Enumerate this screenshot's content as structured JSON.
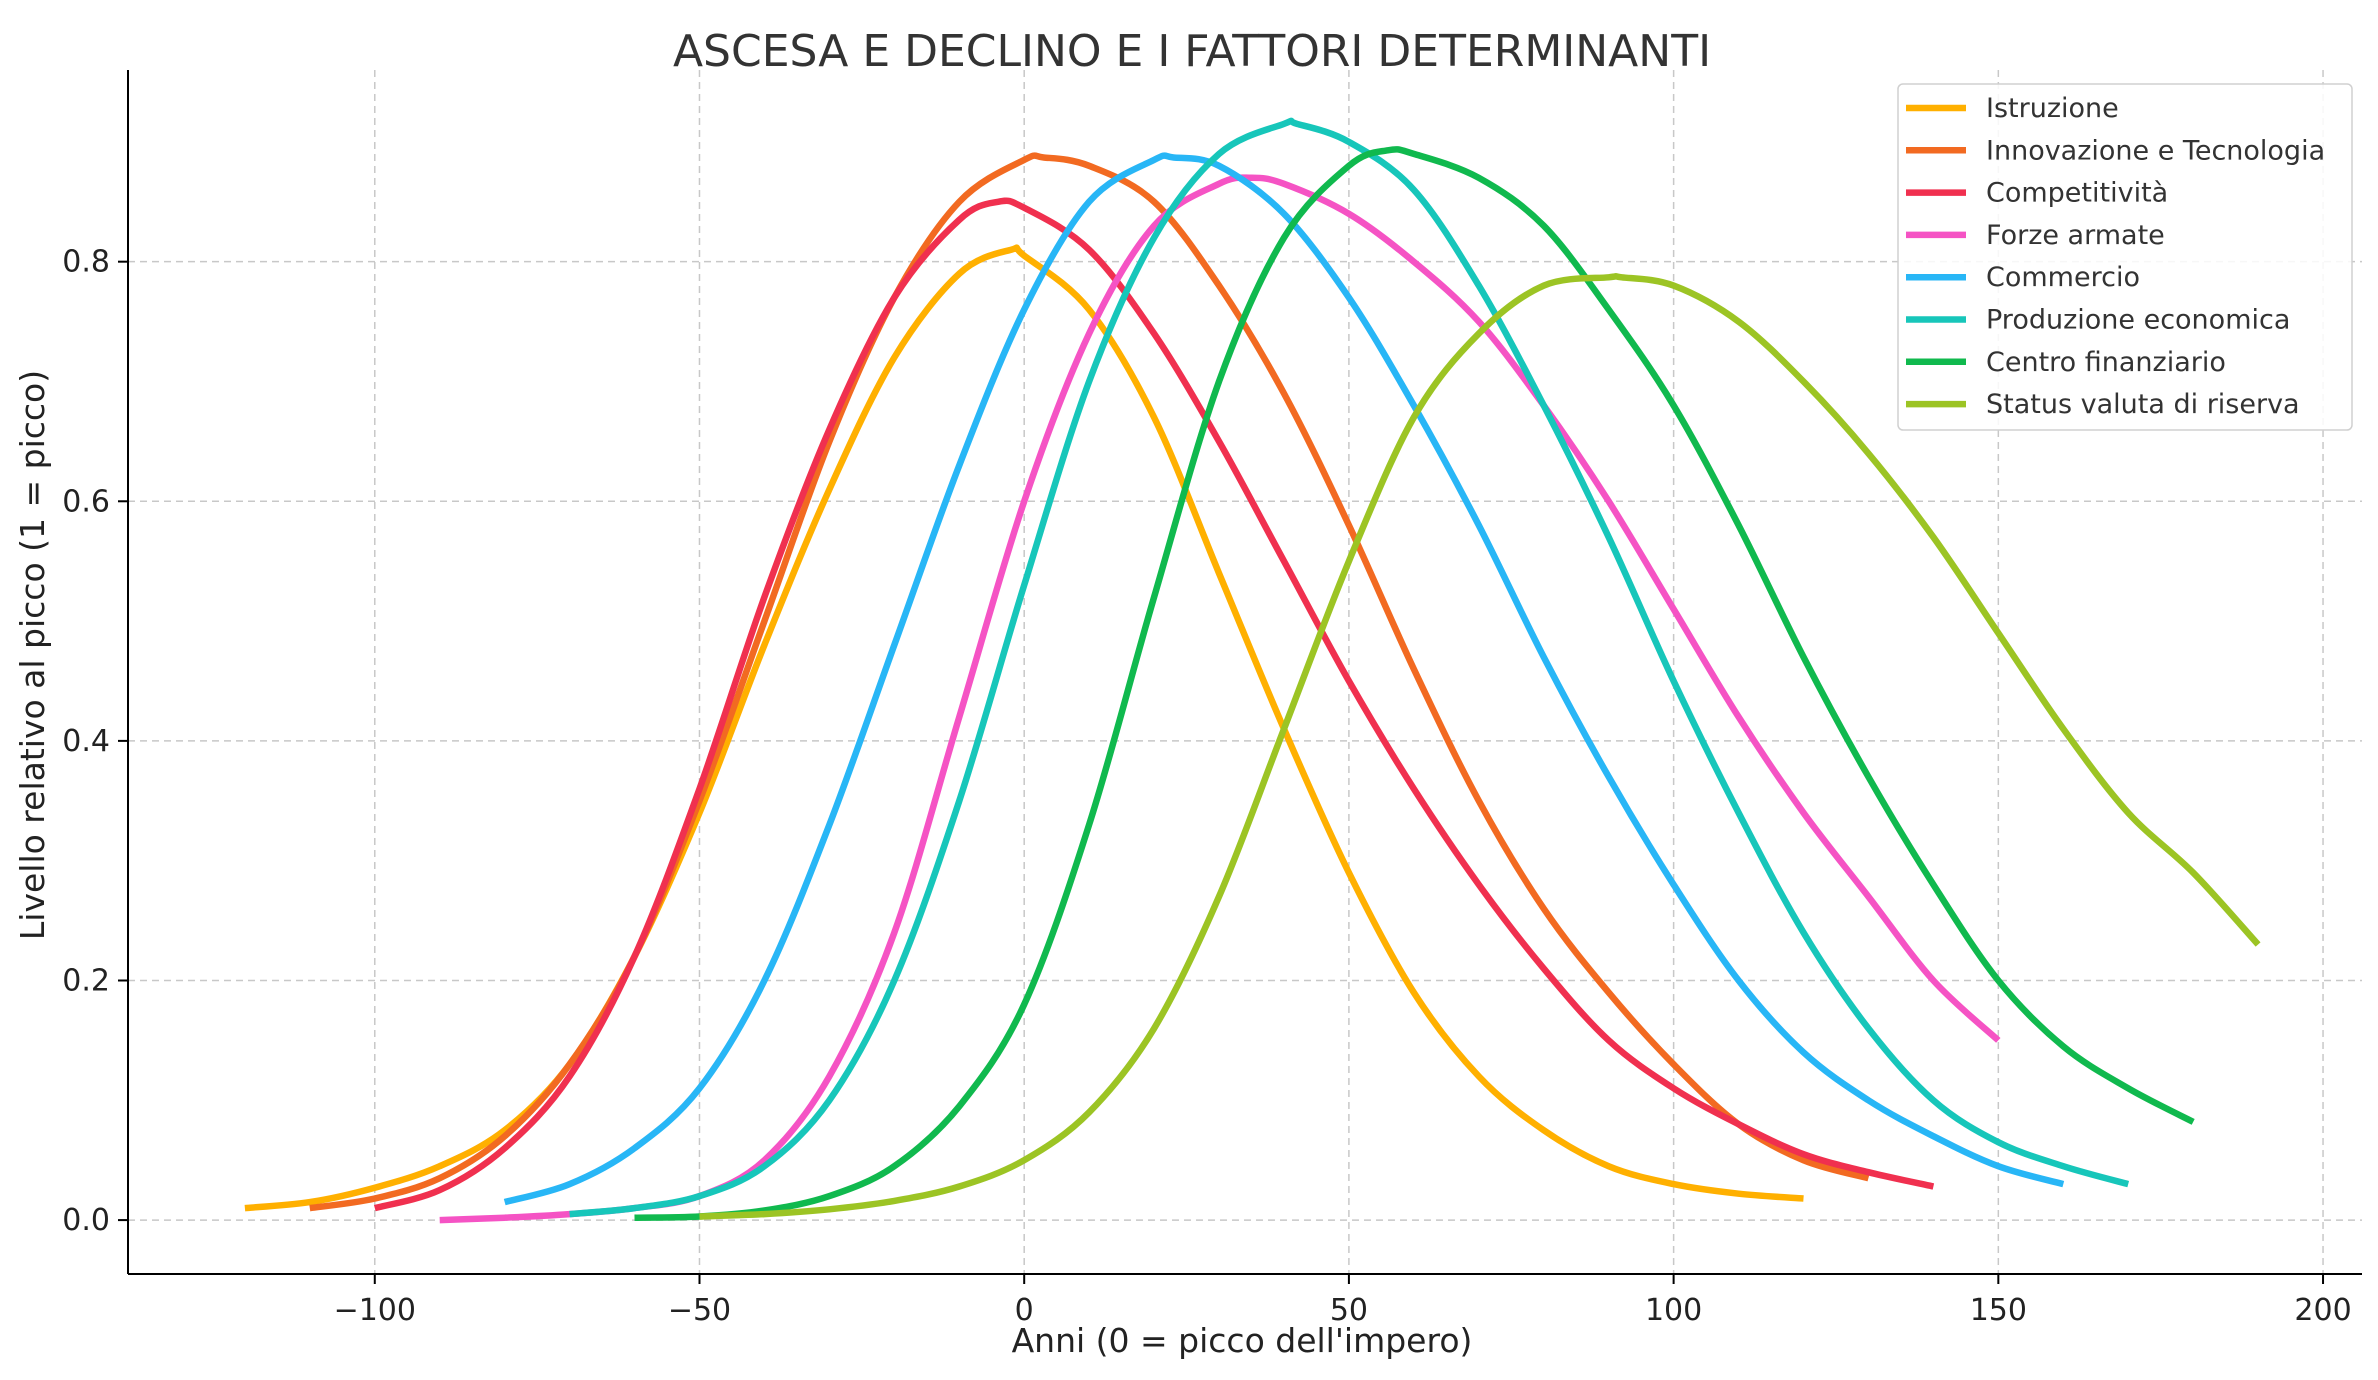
{
  "chart_data": {
    "type": "line",
    "title": "ASCESA E DECLINO E I FATTORI DETERMINANTI",
    "xlabel": "Anni (0 = picco dell'impero)",
    "ylabel": "Livello relativo al picco (1 = picco)",
    "xlim": [
      -138,
      206
    ],
    "ylim": [
      -0.045,
      0.96
    ],
    "xticks": [
      -100,
      -50,
      0,
      50,
      100,
      150,
      200
    ],
    "xtick_labels": [
      "−100",
      "−50",
      "0",
      "50",
      "100",
      "150",
      "200"
    ],
    "yticks": [
      0.0,
      0.2,
      0.4,
      0.6,
      0.8
    ],
    "ytick_labels": [
      "0.0",
      "0.2",
      "0.4",
      "0.6",
      "0.8"
    ],
    "grid": true,
    "legend_position": "top-right",
    "series": [
      {
        "name": "Istruzione",
        "color": "#FFB000",
        "x": [
          -120,
          -110,
          -100,
          -90,
          -80,
          -70,
          -60,
          -50,
          -40,
          -30,
          -20,
          -10,
          -2,
          0,
          10,
          20,
          30,
          40,
          50,
          60,
          70,
          80,
          90,
          100,
          110,
          120
        ],
        "y": [
          0.01,
          0.015,
          0.027,
          0.045,
          0.075,
          0.13,
          0.22,
          0.34,
          0.48,
          0.61,
          0.72,
          0.79,
          0.81,
          0.805,
          0.76,
          0.67,
          0.54,
          0.41,
          0.29,
          0.19,
          0.12,
          0.075,
          0.045,
          0.03,
          0.022,
          0.018
        ]
      },
      {
        "name": "Innovazione e Tecnologia",
        "color": "#F26A21",
        "x": [
          -110,
          -100,
          -90,
          -80,
          -70,
          -60,
          -50,
          -40,
          -30,
          -20,
          -10,
          0,
          3,
          10,
          20,
          30,
          40,
          50,
          60,
          70,
          80,
          90,
          100,
          110,
          120,
          130
        ],
        "y": [
          0.01,
          0.018,
          0.035,
          0.07,
          0.13,
          0.22,
          0.35,
          0.5,
          0.65,
          0.77,
          0.85,
          0.885,
          0.887,
          0.88,
          0.85,
          0.78,
          0.69,
          0.58,
          0.46,
          0.35,
          0.26,
          0.19,
          0.13,
          0.08,
          0.05,
          0.035
        ]
      },
      {
        "name": "Competitività",
        "color": "#F0304F",
        "x": [
          -100,
          -90,
          -80,
          -70,
          -60,
          -50,
          -40,
          -30,
          -20,
          -10,
          -4,
          0,
          10,
          20,
          30,
          40,
          50,
          60,
          70,
          80,
          90,
          100,
          110,
          120,
          130,
          140
        ],
        "y": [
          0.01,
          0.025,
          0.06,
          0.12,
          0.22,
          0.36,
          0.52,
          0.66,
          0.77,
          0.835,
          0.85,
          0.845,
          0.81,
          0.74,
          0.65,
          0.55,
          0.45,
          0.36,
          0.28,
          0.21,
          0.15,
          0.11,
          0.08,
          0.055,
          0.04,
          0.028
        ]
      },
      {
        "name": "Forze armate",
        "color": "#F553C4",
        "x": [
          -90,
          -80,
          -70,
          -60,
          -50,
          -40,
          -30,
          -20,
          -10,
          0,
          10,
          20,
          30,
          35,
          40,
          50,
          60,
          70,
          80,
          90,
          100,
          110,
          120,
          130,
          140,
          150
        ],
        "y": [
          0.0,
          0.002,
          0.005,
          0.01,
          0.02,
          0.05,
          0.12,
          0.24,
          0.42,
          0.6,
          0.74,
          0.83,
          0.865,
          0.87,
          0.865,
          0.84,
          0.8,
          0.75,
          0.68,
          0.6,
          0.51,
          0.42,
          0.34,
          0.27,
          0.2,
          0.15
        ]
      },
      {
        "name": "Commercio",
        "color": "#28B6F6",
        "x": [
          -80,
          -70,
          -60,
          -50,
          -40,
          -30,
          -20,
          -10,
          0,
          10,
          20,
          23,
          30,
          40,
          50,
          60,
          70,
          80,
          90,
          100,
          110,
          120,
          130,
          140,
          150,
          160
        ],
        "y": [
          0.015,
          0.03,
          0.06,
          0.11,
          0.2,
          0.33,
          0.48,
          0.63,
          0.76,
          0.85,
          0.885,
          0.887,
          0.88,
          0.84,
          0.77,
          0.68,
          0.58,
          0.47,
          0.37,
          0.28,
          0.2,
          0.14,
          0.1,
          0.07,
          0.045,
          0.03
        ]
      },
      {
        "name": "Produzione economica",
        "color": "#17C6BA",
        "x": [
          -70,
          -60,
          -50,
          -40,
          -30,
          -20,
          -10,
          0,
          10,
          20,
          30,
          40,
          42,
          50,
          60,
          70,
          80,
          90,
          100,
          110,
          120,
          130,
          140,
          150,
          160,
          170
        ],
        "y": [
          0.005,
          0.01,
          0.02,
          0.045,
          0.1,
          0.2,
          0.35,
          0.53,
          0.7,
          0.82,
          0.89,
          0.915,
          0.915,
          0.9,
          0.86,
          0.78,
          0.68,
          0.57,
          0.45,
          0.34,
          0.24,
          0.16,
          0.1,
          0.065,
          0.045,
          0.03
        ]
      },
      {
        "name": "Centro finanziario",
        "color": "#10B94E",
        "x": [
          -60,
          -50,
          -40,
          -30,
          -20,
          -10,
          0,
          10,
          20,
          30,
          40,
          50,
          56,
          60,
          70,
          80,
          90,
          100,
          110,
          120,
          130,
          140,
          150,
          160,
          170,
          180
        ],
        "y": [
          0.002,
          0.003,
          0.008,
          0.02,
          0.045,
          0.095,
          0.18,
          0.33,
          0.52,
          0.7,
          0.82,
          0.88,
          0.893,
          0.89,
          0.87,
          0.83,
          0.76,
          0.68,
          0.58,
          0.47,
          0.37,
          0.28,
          0.2,
          0.145,
          0.11,
          0.082
        ]
      },
      {
        "name": "Status valuta di riserva",
        "color": "#9CC424",
        "x": [
          -50,
          -40,
          -30,
          -20,
          -10,
          0,
          10,
          20,
          30,
          40,
          50,
          60,
          70,
          80,
          90,
          92,
          100,
          110,
          120,
          130,
          140,
          150,
          160,
          170,
          180,
          190
        ],
        "y": [
          0.003,
          0.005,
          0.009,
          0.016,
          0.028,
          0.05,
          0.09,
          0.16,
          0.27,
          0.41,
          0.55,
          0.67,
          0.74,
          0.78,
          0.787,
          0.787,
          0.78,
          0.75,
          0.7,
          0.64,
          0.57,
          0.49,
          0.41,
          0.34,
          0.29,
          0.23
        ]
      }
    ]
  }
}
